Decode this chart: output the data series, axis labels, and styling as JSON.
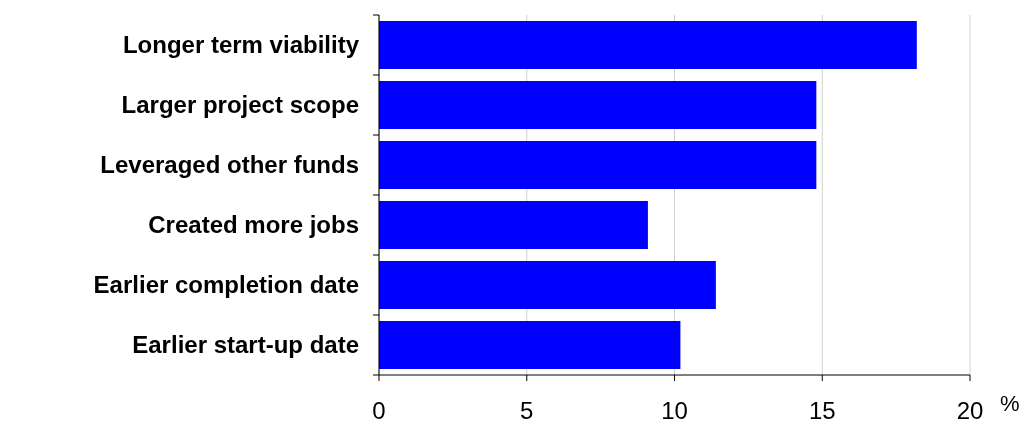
{
  "chart_data": {
    "type": "bar",
    "orientation": "horizontal",
    "categories": [
      "Longer term viability",
      "Larger project scope",
      "Leveraged other funds",
      "Created more jobs",
      "Earlier completion date",
      "Earlier start-up date"
    ],
    "values": [
      18.2,
      14.8,
      14.8,
      9.1,
      11.4,
      10.2
    ],
    "color": "#0000ff",
    "xlim": [
      0,
      20
    ],
    "xticks": [
      0,
      5,
      10,
      15,
      20
    ],
    "xlabel": "%",
    "grid": "x"
  }
}
